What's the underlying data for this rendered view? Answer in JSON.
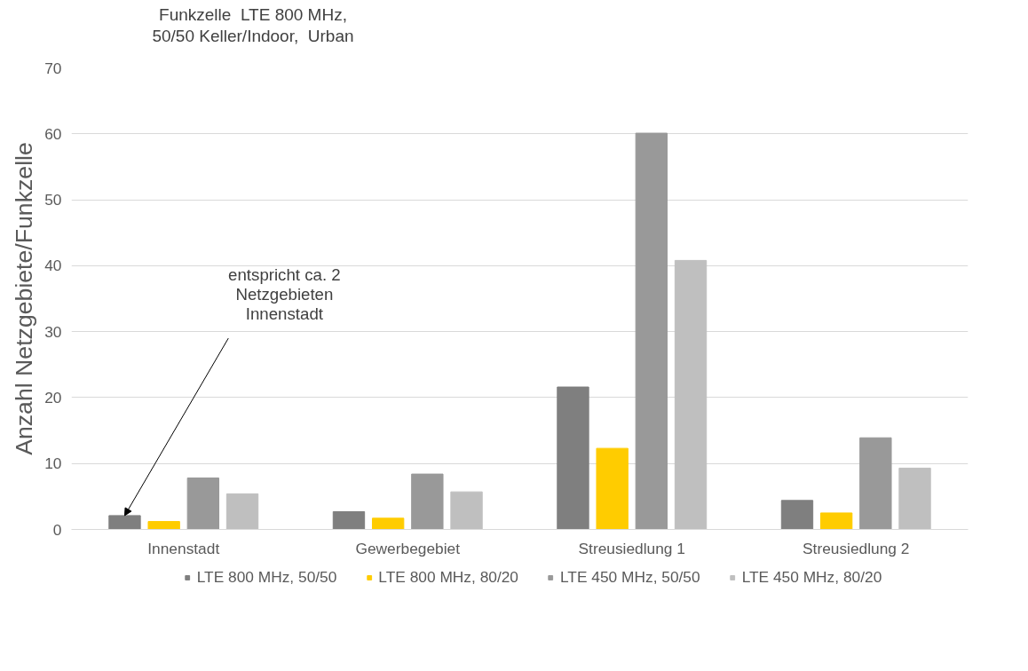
{
  "chart_data": {
    "type": "bar",
    "ylabel": "Anzahl Netzgebiete/Funkzelle",
    "categories": [
      "Innenstadt",
      "Gewerbegebiet",
      "Streusiedlung 1",
      "Streusiedlung 2"
    ],
    "series": [
      {
        "name": "LTE 800 MHz, 50/50",
        "color": "#7f7f7f",
        "values": [
          2.1,
          2.7,
          21.6,
          4.4
        ]
      },
      {
        "name": "LTE 800 MHz, 80/20",
        "color": "#ffcc00",
        "values": [
          1.2,
          1.7,
          12.3,
          2.5
        ]
      },
      {
        "name": "LTE 450 MHz, 50/50",
        "color": "#999999",
        "values": [
          7.8,
          8.4,
          60.1,
          13.9
        ]
      },
      {
        "name": "LTE 450 MHz, 80/20",
        "color": "#bfbfbf",
        "values": [
          5.4,
          5.7,
          40.8,
          9.3
        ]
      }
    ],
    "ylim": [
      0,
      70
    ],
    "yticks": [
      0,
      10,
      20,
      30,
      40,
      50,
      60,
      70
    ],
    "grid": "y",
    "legend": "bottom",
    "annotations": [
      "Funkzelle  LTE 800 MHz,\n50/50 Keller/Indoor,  Urban",
      "entspricht ca. 2\nNetzgebieten\nInnenstadt"
    ]
  }
}
